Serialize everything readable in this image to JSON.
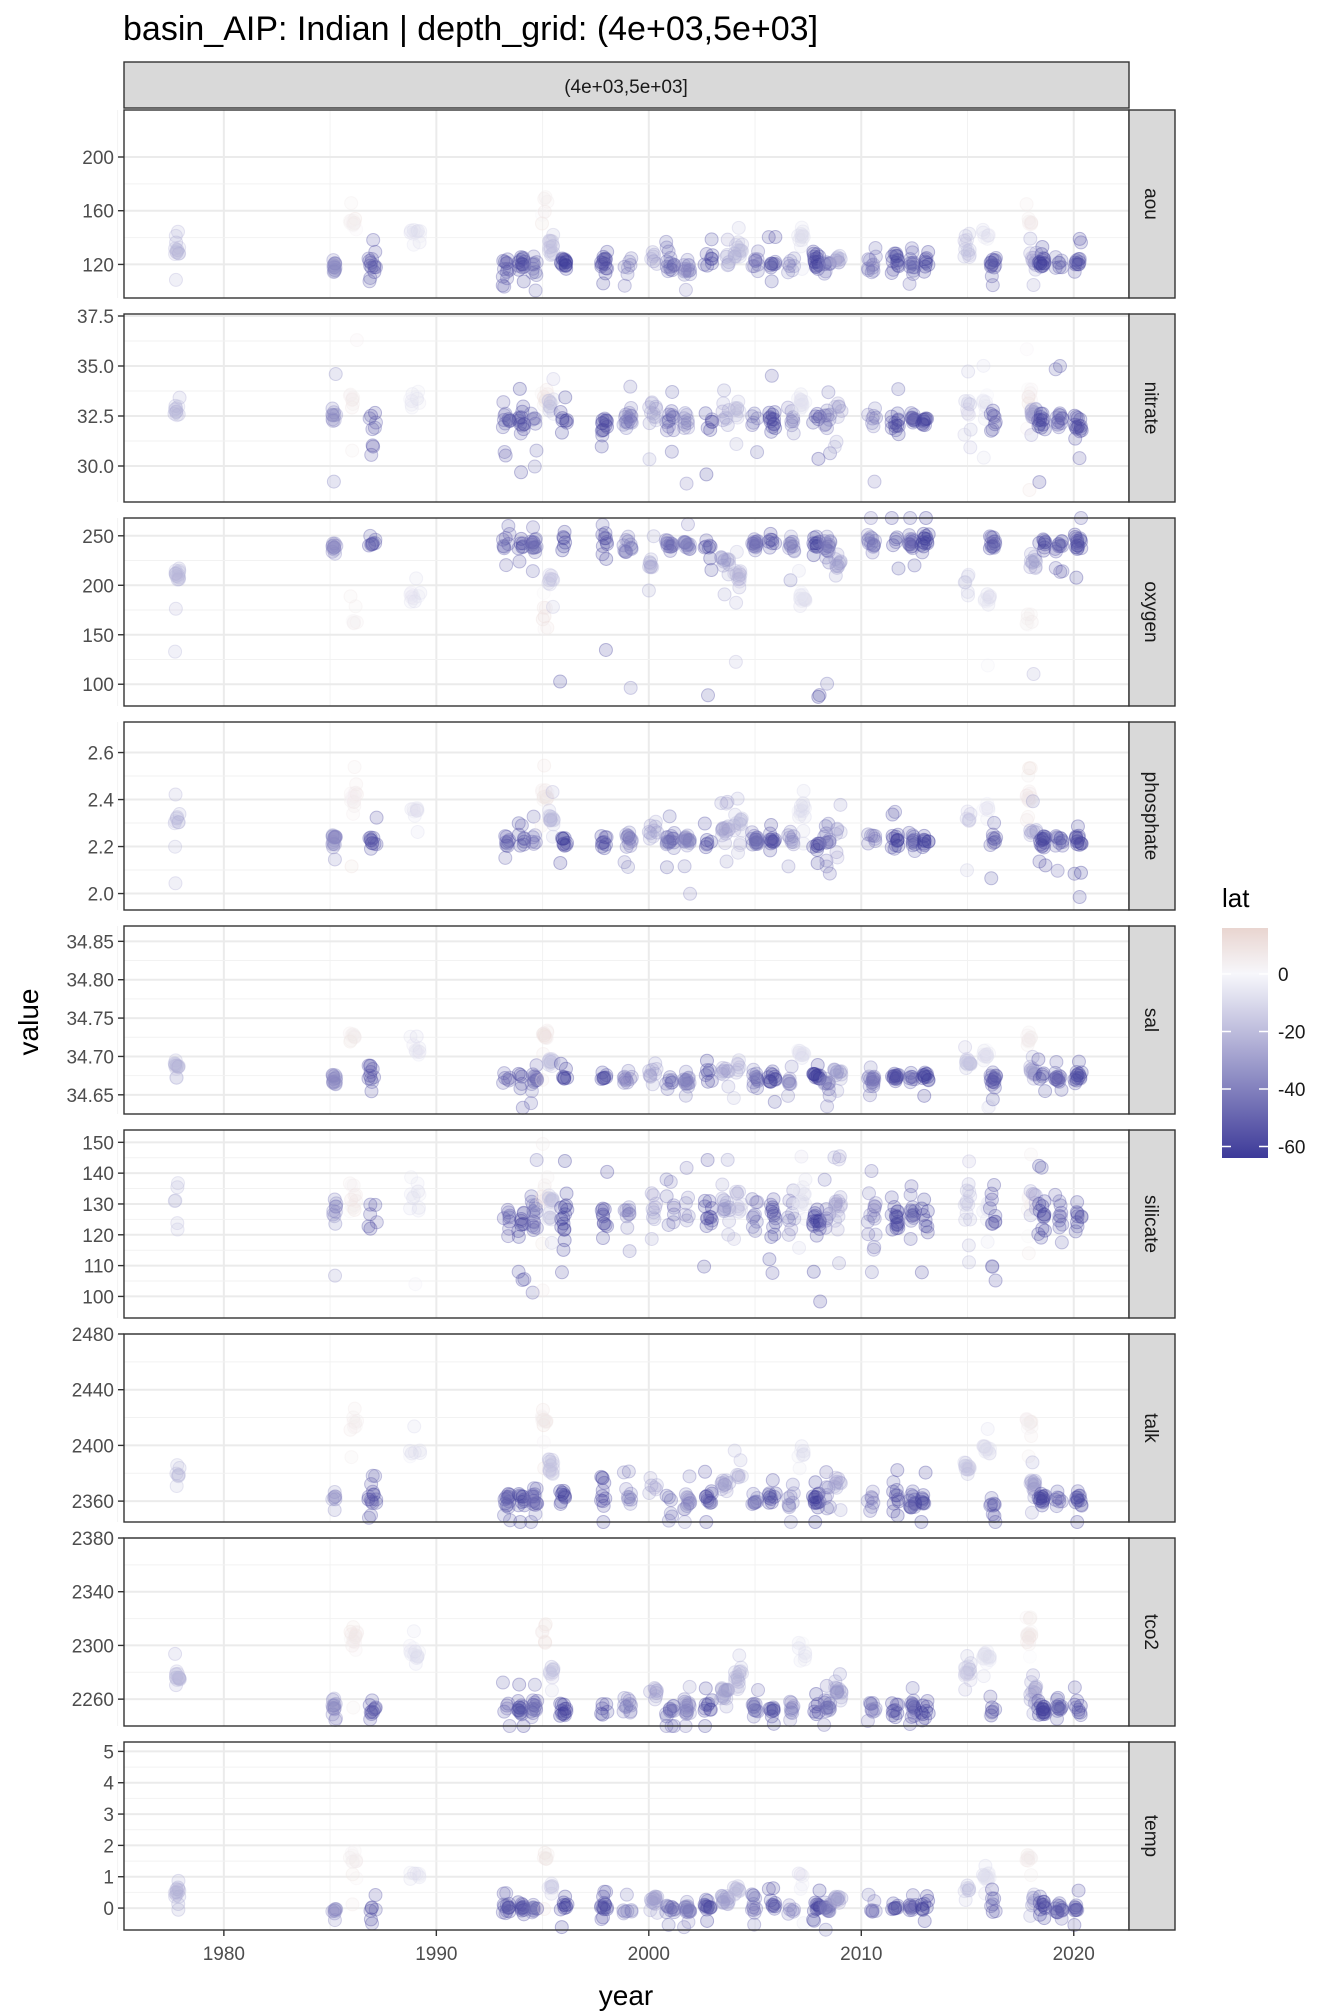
{
  "chart_data": {
    "type": "scatter",
    "title": "basin_AIP: Indian | depth_grid: (4e+03,5e+03]",
    "facet_column_label": "(4e+03,5e+03]",
    "xlabel": "year",
    "ylabel": "value",
    "xlim": [
      1975.3,
      2022.6
    ],
    "x_ticks": [
      1980,
      1990,
      2000,
      2010,
      2020
    ],
    "legend": {
      "title": "lat",
      "position": "right",
      "range": [
        -64,
        16
      ],
      "ticks": [
        0,
        -20,
        -40,
        -60
      ],
      "color_low": "#3d3a99",
      "color_mid": "#f7f7fb",
      "color_high": "#e9d5d0"
    },
    "cruises": [
      {
        "year": 1977.8,
        "lat": -22,
        "width": 0.25
      },
      {
        "year": 1985.2,
        "lat": -38,
        "width": 0.2
      },
      {
        "year": 1986.1,
        "lat": 6,
        "width": 0.35
      },
      {
        "year": 1987.0,
        "lat": -55,
        "width": 0.4
      },
      {
        "year": 1989.0,
        "lat": -8,
        "width": 0.5
      },
      {
        "year": 1993.3,
        "lat": -52,
        "width": 0.35
      },
      {
        "year": 1994.0,
        "lat": -58,
        "width": 0.3
      },
      {
        "year": 1994.6,
        "lat": -48,
        "width": 0.3
      },
      {
        "year": 1995.1,
        "lat": 8,
        "width": 0.3
      },
      {
        "year": 1995.4,
        "lat": -18,
        "width": 0.25
      },
      {
        "year": 1996.0,
        "lat": -63,
        "width": 0.35
      },
      {
        "year": 1997.9,
        "lat": -58,
        "width": 0.3
      },
      {
        "year": 1999.0,
        "lat": -42,
        "width": 0.4
      },
      {
        "year": 2000.2,
        "lat": -30,
        "width": 0.4
      },
      {
        "year": 2001.0,
        "lat": -48,
        "width": 0.4
      },
      {
        "year": 2001.8,
        "lat": -40,
        "width": 0.3
      },
      {
        "year": 2002.8,
        "lat": -58,
        "width": 0.4
      },
      {
        "year": 2003.6,
        "lat": -30,
        "width": 0.4
      },
      {
        "year": 2004.2,
        "lat": -22,
        "width": 0.4
      },
      {
        "year": 2005.0,
        "lat": -46,
        "width": 0.3
      },
      {
        "year": 2005.8,
        "lat": -58,
        "width": 0.35
      },
      {
        "year": 2006.7,
        "lat": -40,
        "width": 0.3
      },
      {
        "year": 2007.2,
        "lat": -8,
        "width": 0.35
      },
      {
        "year": 2007.9,
        "lat": -62,
        "width": 0.35
      },
      {
        "year": 2008.4,
        "lat": -45,
        "width": 0.3
      },
      {
        "year": 2008.9,
        "lat": -30,
        "width": 0.35
      },
      {
        "year": 2010.5,
        "lat": -44,
        "width": 0.4
      },
      {
        "year": 2011.6,
        "lat": -58,
        "width": 0.35
      },
      {
        "year": 2012.4,
        "lat": -52,
        "width": 0.3
      },
      {
        "year": 2013.0,
        "lat": -62,
        "width": 0.35
      },
      {
        "year": 2015.0,
        "lat": -18,
        "width": 0.3
      },
      {
        "year": 2015.9,
        "lat": -8,
        "width": 0.35
      },
      {
        "year": 2016.2,
        "lat": -55,
        "width": 0.3
      },
      {
        "year": 2017.9,
        "lat": 6,
        "width": 0.25
      },
      {
        "year": 2018.1,
        "lat": -30,
        "width": 0.3
      },
      {
        "year": 2018.5,
        "lat": -60,
        "width": 0.35
      },
      {
        "year": 2019.3,
        "lat": -52,
        "width": 0.35
      },
      {
        "year": 2020.2,
        "lat": -58,
        "width": 0.35
      }
    ],
    "panels": [
      {
        "name": "aou",
        "ylim": [
          95,
          235
        ],
        "ticks": [
          120,
          160,
          200
        ],
        "tick_labels": [
          "120",
          "160",
          "200"
        ],
        "deep": [
          108,
          122
        ],
        "intercept": 155,
        "south_slope": 0,
        "spread": 6,
        "tail": 6,
        "outlier_low": 98,
        "outlier_high": 220
      },
      {
        "name": "nitrate",
        "ylim": [
          28.2,
          37.6
        ],
        "ticks": [
          30,
          32.5,
          35,
          37.5
        ],
        "tick_labels": [
          "30.0",
          "32.5",
          "35.0",
          "37.5"
        ],
        "deep": [
          32.2,
          32.8
        ],
        "intercept": 33.5,
        "south_slope": 0,
        "spread": 0.5,
        "tail": 0.9,
        "outlier_low": 28.5,
        "outlier_high": 37.2
      },
      {
        "name": "oxygen",
        "ylim": [
          78,
          268
        ],
        "ticks": [
          100,
          150,
          200,
          250
        ],
        "tick_labels": [
          "100",
          "150",
          "200",
          "250"
        ],
        "deep": [
          230,
          245
        ],
        "intercept": 160,
        "south_slope": 0,
        "spread": 8,
        "tail": 10,
        "outlier_low": 85,
        "outlier_high": 262
      },
      {
        "name": "phosphate",
        "ylim": [
          1.93,
          2.73
        ],
        "ticks": [
          2.0,
          2.2,
          2.4,
          2.6
        ],
        "tick_labels": [
          "2.0",
          "2.2",
          "2.4",
          "2.6"
        ],
        "deep": [
          2.22,
          2.26
        ],
        "intercept": 2.42,
        "south_slope": 0,
        "spread": 0.03,
        "tail": 0.05,
        "outlier_low": 1.97,
        "outlier_high": 2.66
      },
      {
        "name": "sal",
        "ylim": [
          34.625,
          34.87
        ],
        "ticks": [
          34.65,
          34.7,
          34.75,
          34.8,
          34.85
        ],
        "tick_labels": [
          "34.65",
          "34.70",
          "34.75",
          "34.80",
          "34.85"
        ],
        "deep": [
          34.652,
          34.675
        ],
        "intercept": 34.73,
        "south_slope": 0,
        "spread": 0.007,
        "tail": 0.007,
        "outlier_low": 34.632,
        "outlier_high": 34.77
      },
      {
        "name": "silicate",
        "ylim": [
          93,
          154
        ],
        "ticks": [
          100,
          110,
          120,
          130,
          140,
          150
        ],
        "tick_labels": [
          "100",
          "110",
          "120",
          "130",
          "140",
          "150"
        ],
        "deep": [
          125,
          135
        ],
        "intercept": 132,
        "south_slope": 0,
        "spread": 6,
        "tail": 7,
        "outlier_low": 96,
        "outlier_high": 152
      },
      {
        "name": "talk",
        "ylim": [
          2345,
          2480
        ],
        "ticks": [
          2360,
          2400,
          2440,
          2480
        ],
        "tick_labels": [
          "2360",
          "2400",
          "2440",
          "2480"
        ],
        "deep": [
          2354,
          2362
        ],
        "intercept": 2420,
        "south_slope": 0,
        "spread": 6,
        "tail": 7,
        "outlier_low": 2348,
        "outlier_high": 2470
      },
      {
        "name": "tco2",
        "ylim": [
          2240,
          2380
        ],
        "ticks": [
          2260,
          2300,
          2340,
          2380
        ],
        "tick_labels": [
          "2260",
          "2300",
          "2340",
          "2380"
        ],
        "deep": [
          2252,
          2260
        ],
        "intercept": 2312,
        "south_slope": 0,
        "spread": 6,
        "tail": 6,
        "outlier_low": 2243,
        "outlier_high": 2365
      },
      {
        "name": "temp",
        "ylim": [
          -0.7,
          5.3
        ],
        "ticks": [
          0,
          1,
          2,
          3,
          4,
          5
        ],
        "tick_labels": [
          "0",
          "1",
          "2",
          "3",
          "4",
          "5"
        ],
        "deep": [
          -0.3,
          0.05
        ],
        "intercept": 1.7,
        "south_slope": 0,
        "spread": 0.15,
        "tail": 0.2,
        "outlier_low": -0.5,
        "outlier_high": 2.0
      }
    ]
  }
}
